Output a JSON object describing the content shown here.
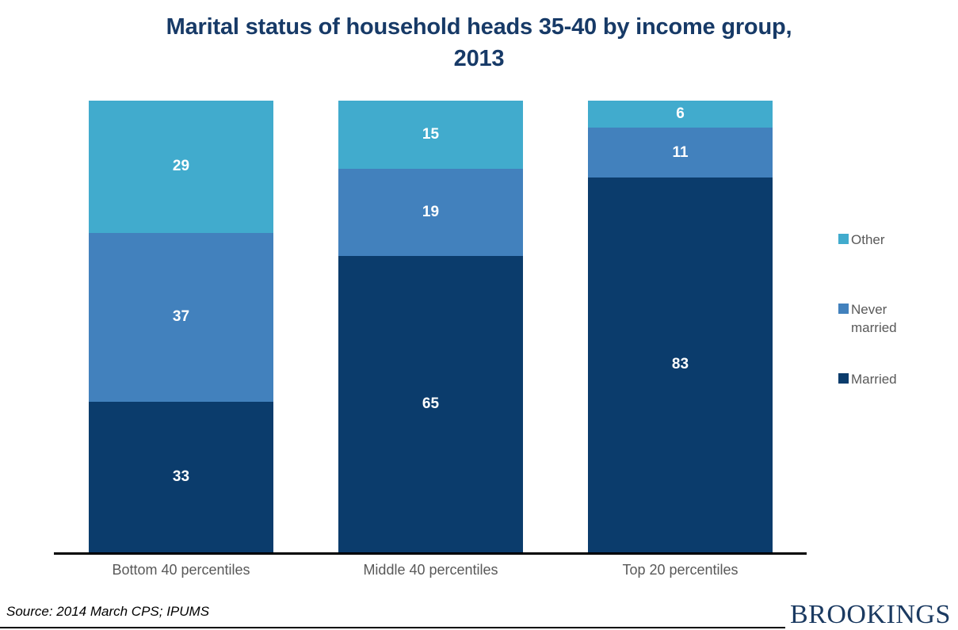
{
  "title": {
    "line1": "Marital status of household heads 35-40 by income group,",
    "line2": "2013"
  },
  "chart_data": {
    "type": "bar",
    "variant": "100-percent-stacked-column",
    "title": "Marital status of household heads 35-40 by income group, 2013",
    "categories": [
      "Bottom 40 percentiles",
      "Middle 40 percentiles",
      "Top 20 percentiles"
    ],
    "stack_order": "top_to_bottom",
    "series": [
      {
        "key": "other",
        "name": "Other",
        "color": "#41ABCD",
        "values": [
          29,
          15,
          6
        ]
      },
      {
        "key": "never-married",
        "name": "Never married",
        "color": "#4281BD",
        "values": [
          37,
          19,
          11
        ]
      },
      {
        "key": "married",
        "name": "Married",
        "color": "#0B3C6C",
        "values": [
          33,
          65,
          83
        ]
      }
    ],
    "value_labels": "inside-center",
    "value_label_color": "#FFFFFF",
    "axis": {
      "y_axis_visible": false,
      "gridlines": false,
      "x_baseline_color": "#000000"
    },
    "legend": {
      "position": "right",
      "labels": [
        "Other",
        "Never married",
        "Married"
      ]
    }
  },
  "footer": {
    "source": "Source: 2014 March CPS; IPUMS",
    "logo": "BROOKINGS"
  },
  "colors": {
    "title": "#173A67",
    "category_label": "#595959",
    "legend_label": "#595959",
    "logo": "#1B3A61"
  }
}
